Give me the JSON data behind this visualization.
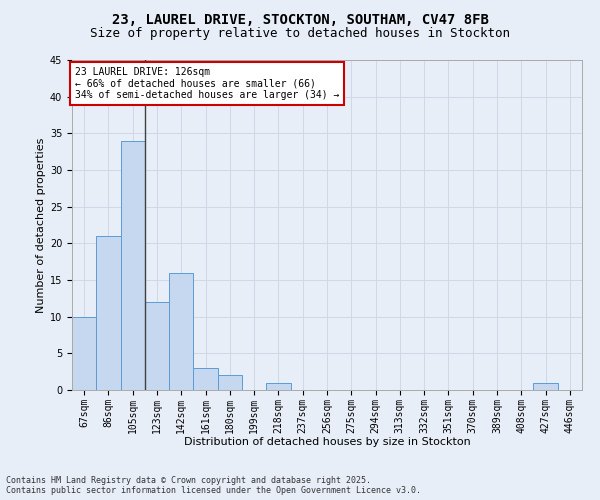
{
  "title_line1": "23, LAUREL DRIVE, STOCKTON, SOUTHAM, CV47 8FB",
  "title_line2": "Size of property relative to detached houses in Stockton",
  "xlabel": "Distribution of detached houses by size in Stockton",
  "ylabel": "Number of detached properties",
  "categories": [
    "67sqm",
    "86sqm",
    "105sqm",
    "123sqm",
    "142sqm",
    "161sqm",
    "180sqm",
    "199sqm",
    "218sqm",
    "237sqm",
    "256sqm",
    "275sqm",
    "294sqm",
    "313sqm",
    "332sqm",
    "351sqm",
    "370sqm",
    "389sqm",
    "408sqm",
    "427sqm",
    "446sqm"
  ],
  "values": [
    10,
    21,
    34,
    12,
    16,
    3,
    2,
    0,
    1,
    0,
    0,
    0,
    0,
    0,
    0,
    0,
    0,
    0,
    0,
    1,
    0
  ],
  "bar_color": "#c5d8f0",
  "bar_edge_color": "#5b9bd5",
  "vline_x_index": 2.5,
  "vline_color": "#404040",
  "annotation_text": "23 LAUREL DRIVE: 126sqm\n← 66% of detached houses are smaller (66)\n34% of semi-detached houses are larger (34) →",
  "annotation_box_color": "#ffffff",
  "annotation_box_edge_color": "#cc0000",
  "ylim": [
    0,
    45
  ],
  "yticks": [
    0,
    5,
    10,
    15,
    20,
    25,
    30,
    35,
    40,
    45
  ],
  "grid_color": "#d0d8e8",
  "bg_color": "#e8eef8",
  "footer_line1": "Contains HM Land Registry data © Crown copyright and database right 2025.",
  "footer_line2": "Contains public sector information licensed under the Open Government Licence v3.0.",
  "title_fontsize": 10,
  "title2_fontsize": 9,
  "axis_label_fontsize": 8,
  "tick_fontsize": 7,
  "annotation_fontsize": 7,
  "footer_fontsize": 6
}
